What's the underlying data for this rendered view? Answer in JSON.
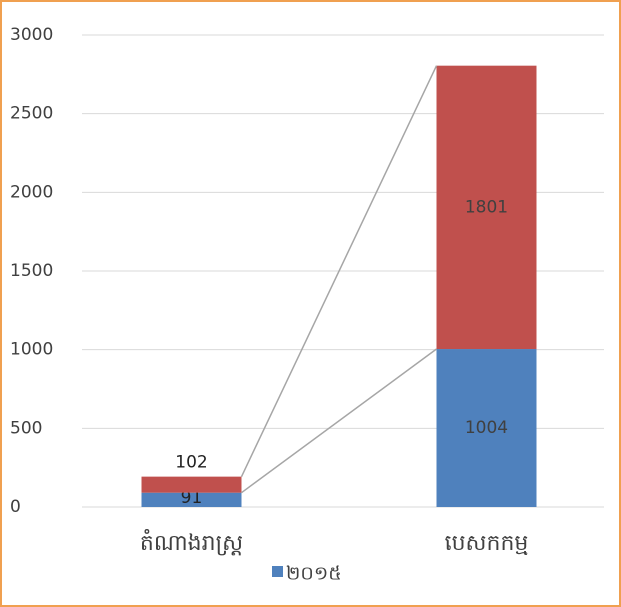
{
  "chart_data": {
    "type": "bar",
    "stacked": true,
    "categories": [
      "តំណាងរាស្ត្រ",
      "បេសកកម្ម"
    ],
    "series": [
      {
        "name": "២០១៥",
        "color": "#4f81bd",
        "values": [
          91,
          1004
        ]
      },
      {
        "color": "#c0504d",
        "values": [
          102,
          1801
        ]
      }
    ],
    "ylim": [
      0,
      3000
    ],
    "yticks": [
      0,
      500,
      1000,
      1500,
      2000,
      2500,
      3000
    ],
    "grid": true,
    "series_lines": true,
    "legend": "bottom"
  }
}
